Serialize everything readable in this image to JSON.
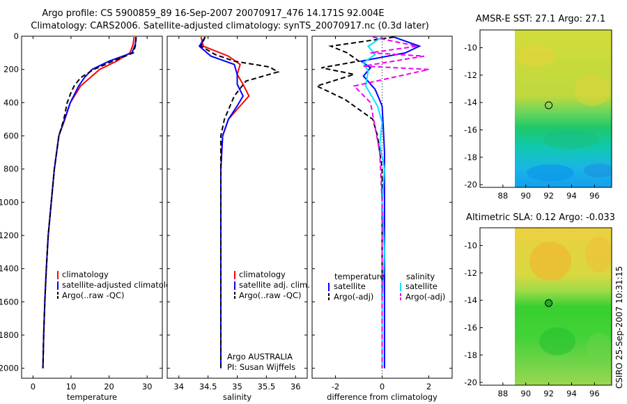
{
  "title": {
    "line1": "Argo profile: CS 5900859_89 16-Sep-2007 20070917_476 14.171S 92.004E",
    "line2": "Climatology: CARS2006. Satellite-adjusted climatology: synTS_20070917.nc (0.3d later)"
  },
  "credit": "CSIRO 25-Sep-2007 10:31:15",
  "chart_data": [
    {
      "id": "temperature",
      "type": "line",
      "xlabel": "temperature",
      "ylabel": "",
      "xlim": [
        -3,
        34
      ],
      "ylim": [
        2060,
        0
      ],
      "xticks": [
        0,
        10,
        20,
        30
      ],
      "yticks": [
        0,
        200,
        400,
        600,
        800,
        1000,
        1200,
        1400,
        1600,
        1800,
        2000
      ],
      "legend": [
        "climatology",
        "satellite-adjusted climatology",
        "Argo(..raw -QC)"
      ],
      "series": [
        {
          "name": "climatology",
          "color": "#ff0000",
          "x": [
            26.6,
            26.3,
            25.5,
            22,
            17.5,
            15,
            12.5,
            11.2,
            9.8,
            8.4,
            6.8,
            5.6,
            4.8,
            4.0,
            3.5,
            3.1,
            2.8,
            2.6
          ],
          "y": [
            5,
            50,
            100,
            150,
            200,
            250,
            300,
            350,
            400,
            500,
            600,
            800,
            1000,
            1200,
            1400,
            1600,
            1800,
            2000
          ]
        },
        {
          "name": "satellite-adjusted climatology",
          "color": "#0000ff",
          "x": [
            27.1,
            26.9,
            26.0,
            20.0,
            15.5,
            13.5,
            12.0,
            10.9,
            9.8,
            8.3,
            6.8,
            5.6,
            4.8,
            4.0,
            3.5,
            3.1,
            2.8,
            2.6
          ],
          "y": [
            5,
            50,
            100,
            150,
            200,
            250,
            300,
            350,
            400,
            500,
            600,
            800,
            1000,
            1200,
            1400,
            1600,
            1800,
            2000
          ]
        },
        {
          "name": "Argo(..raw -QC)",
          "color": "#000000",
          "dashed": true,
          "x": [
            27.1,
            27.0,
            26.4,
            21.0,
            16.0,
            12.5,
            10.8,
            9.8,
            9.0,
            8.1,
            6.8,
            5.6,
            4.8,
            4.0,
            3.5,
            3.1,
            2.8,
            2.6
          ],
          "y": [
            5,
            50,
            100,
            150,
            200,
            250,
            300,
            350,
            400,
            500,
            600,
            800,
            1000,
            1200,
            1400,
            1600,
            1800,
            2000
          ]
        }
      ]
    },
    {
      "id": "salinity",
      "type": "line",
      "xlabel": "salinity",
      "ylabel": "",
      "xlim": [
        33.8,
        36.2
      ],
      "ylim": [
        2060,
        0
      ],
      "xticks": [
        34,
        34.5,
        35,
        35.5,
        36
      ],
      "xticklabels": [
        "34",
        "34.5",
        "35",
        "35.5",
        "36"
      ],
      "yticks": [
        0,
        200,
        400,
        600,
        800,
        1000,
        1200,
        1400,
        1600,
        1800,
        2000
      ],
      "legend": [
        "climatology",
        "satellite adj. clim.",
        "Argo(..raw -QC)"
      ],
      "annotation": [
        "Argo AUSTRALIA",
        "PI: Susan Wijffels"
      ],
      "series": [
        {
          "name": "climatology",
          "color": "#ff0000",
          "x": [
            34.38,
            34.42,
            34.85,
            35.05,
            35.0,
            35.1,
            35.2,
            35.05,
            34.85,
            34.75,
            34.72,
            34.72,
            34.72,
            34.72,
            34.72
          ],
          "y": [
            5,
            60,
            120,
            170,
            230,
            290,
            360,
            420,
            500,
            600,
            800,
            1000,
            1400,
            1800,
            2000
          ]
        },
        {
          "name": "satellite adj. clim.",
          "color": "#0000ff",
          "x": [
            34.45,
            34.35,
            34.55,
            34.95,
            35.0,
            35.0,
            35.1,
            35.0,
            34.85,
            34.75,
            34.72,
            34.72,
            34.72,
            34.72,
            34.72
          ],
          "y": [
            5,
            60,
            120,
            170,
            230,
            290,
            360,
            420,
            500,
            600,
            800,
            1000,
            1400,
            1800,
            2000
          ]
        },
        {
          "name": "Argo(..raw -QC)",
          "color": "#000000",
          "dashed": true,
          "x": [
            34.45,
            34.38,
            34.62,
            34.95,
            35.55,
            35.7,
            35.15,
            34.95,
            34.78,
            34.72,
            34.72,
            34.72,
            34.72,
            34.72
          ],
          "y": [
            5,
            60,
            110,
            150,
            185,
            215,
            270,
            360,
            500,
            600,
            1000,
            1400,
            1800,
            2000
          ]
        }
      ]
    },
    {
      "id": "difference",
      "type": "line",
      "xlabel": "difference from climatology",
      "ylabel": "",
      "xlim": [
        -3,
        3
      ],
      "ylim": [
        2060,
        0
      ],
      "xticks": [
        -2,
        0,
        2
      ],
      "yticks": [
        0,
        200,
        400,
        600,
        800,
        1000,
        1200,
        1400,
        1600,
        1800,
        2000
      ],
      "legend_left_header": "temperature",
      "legend_right_header": "salinity",
      "legend": [
        "satellite",
        "Argo(-adj)",
        "satellite",
        "Argo(-adj)"
      ],
      "series": [
        {
          "name": "temperature satellite",
          "color": "#0000ff",
          "x": [
            0.5,
            1.6,
            1.0,
            -0.9,
            -0.5,
            -0.8,
            -0.3,
            0.0,
            0.05,
            0.1,
            0.1,
            0.1,
            0.1,
            0.1,
            0.1
          ],
          "y": [
            5,
            60,
            100,
            150,
            190,
            240,
            320,
            420,
            550,
            700,
            900,
            1200,
            1500,
            1800,
            2000
          ]
        },
        {
          "name": "temperature Argo(-adj)",
          "color": "#000000",
          "dashed": true,
          "x": [
            0.5,
            -2.2,
            -1.5,
            -1.0,
            -2.6,
            -1.2,
            -2.8,
            -1.6,
            -0.4,
            -0.2,
            0.0,
            0.0,
            0.0
          ],
          "y": [
            5,
            60,
            100,
            150,
            190,
            230,
            300,
            380,
            500,
            600,
            800,
            1200,
            2000
          ]
        },
        {
          "name": "salinity satellite",
          "color": "#00e5ff",
          "x": [
            0.0,
            -0.6,
            -0.3,
            -0.8,
            -0.6,
            -0.7,
            -0.2,
            0.0,
            -0.1,
            0.1,
            0.0,
            0.1,
            0.0,
            0.0
          ],
          "y": [
            5,
            60,
            110,
            160,
            210,
            300,
            420,
            520,
            650,
            800,
            1000,
            1300,
            1600,
            2000
          ]
        },
        {
          "name": "salinity Argo(-adj)",
          "color": "#ee00ee",
          "dashed": true,
          "x": [
            -0.4,
            1.5,
            -0.5,
            1.8,
            -0.8,
            2.0,
            -1.2,
            -0.5,
            -0.3,
            -0.1,
            0.0,
            0.0
          ],
          "y": [
            5,
            60,
            100,
            120,
            180,
            200,
            300,
            400,
            550,
            700,
            1000,
            2000
          ]
        }
      ]
    },
    {
      "id": "amsre-map",
      "type": "heatmap",
      "title": "AMSR-E SST: 27.1 Argo: 27.1",
      "xlim": [
        86,
        97.5
      ],
      "ylim": [
        -20.2,
        -8.7
      ],
      "xticks": [
        88,
        90,
        92,
        94,
        96
      ],
      "yticks": [
        -10,
        -12,
        -14,
        -16,
        -18,
        -20
      ],
      "data_lon_range": [
        90,
        97.5
      ],
      "marker": {
        "lon": 92.0,
        "lat": -14.2,
        "fill": "none"
      }
    },
    {
      "id": "altimetric-map",
      "type": "heatmap",
      "title": "Altimetric SLA: 0.12 Argo: -0.033",
      "xlim": [
        86,
        97.5
      ],
      "ylim": [
        -20.2,
        -8.7
      ],
      "xticks": [
        88,
        90,
        92,
        94,
        96
      ],
      "yticks": [
        -10,
        -12,
        -14,
        -16,
        -18,
        -20
      ],
      "data_lon_range": [
        90,
        97.5
      ],
      "marker": {
        "lon": 92.0,
        "lat": -14.2,
        "fill": "#22aa22"
      }
    }
  ]
}
